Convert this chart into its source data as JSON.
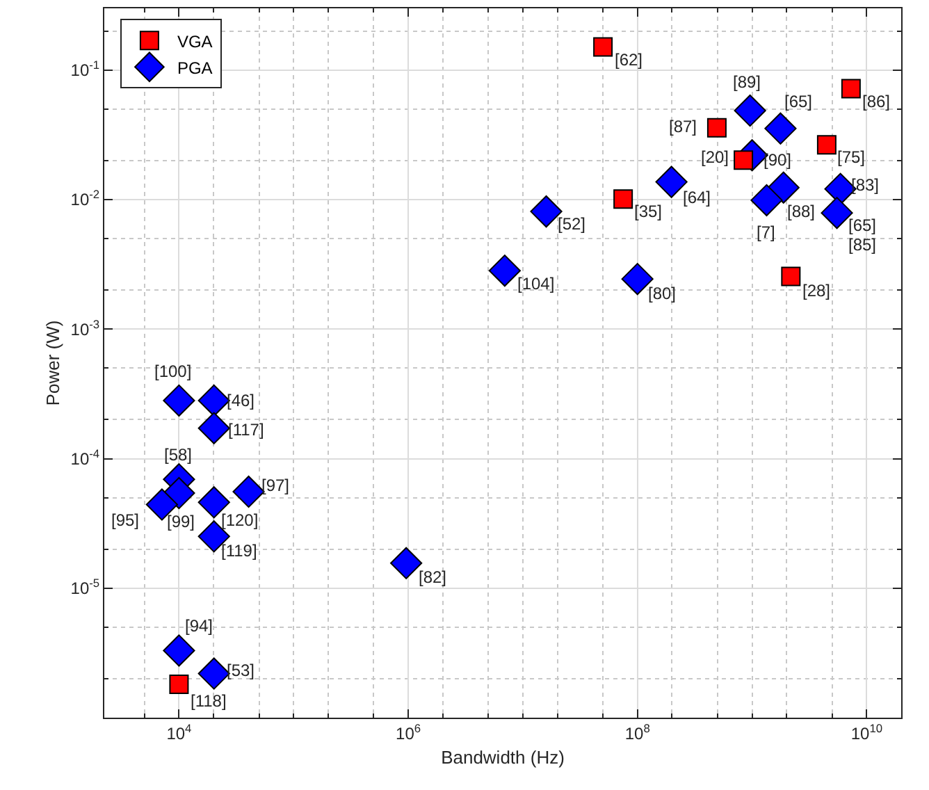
{
  "chart_data": {
    "type": "scatter",
    "xlabel": "Bandwidth (Hz)",
    "ylabel": "Power (W)",
    "log": "xy",
    "grid": true,
    "legend": "top left",
    "xlim": [
      2230,
      20000000000.0
    ],
    "ylim": [
      1e-06,
      0.3
    ],
    "xticks": [
      {
        "value": 10000,
        "label": "10$^{4}$"
      },
      {
        "value": 1000000,
        "label": "10$^{6}$"
      },
      {
        "value": 100000000,
        "label": "10$^{8}$"
      },
      {
        "value": 10000000000,
        "label": "10$^{10}$"
      }
    ],
    "yticks": [
      {
        "value": 1e-05,
        "label": "10$^{-5}$"
      },
      {
        "value": 0.0001,
        "label": "10$^{-4}$"
      },
      {
        "value": 0.001,
        "label": "10$^{-3}$"
      },
      {
        "value": 0.01,
        "label": "10$^{-2}$"
      },
      {
        "value": 0.1,
        "label": "10$^{-1}$"
      }
    ],
    "series": [
      {
        "name": "VGA",
        "color": "#ff0000",
        "marker": "square",
        "x": [
          50000000.0,
          7300000000.0,
          493000000.0,
          4480000000.0,
          840000000.0,
          75000000.0,
          2180000000.0,
          10000.0
        ],
        "values": [
          0.151,
          0.072,
          0.0359,
          0.0265,
          0.0202,
          0.0101,
          0.00255,
          1.81e-06
        ]
      },
      {
        "name": "PGA",
        "color": "#0000ff",
        "marker": "diamond",
        "x": [
          960000000.0,
          1770000000.0,
          1000000000.0,
          198000000.0,
          1880000000.0,
          5900000000.0,
          1340000000.0,
          16000000.0,
          5500000000.0,
          6950000.0,
          100000000.0,
          10000.0,
          20200.0,
          20200.0,
          10000.0,
          10000.0,
          7100.0,
          20200.0,
          40500.0,
          20200.0,
          960000.0,
          10000.0,
          20200.0
        ],
        "values": [
          0.0487,
          0.0354,
          0.022,
          0.0137,
          0.0124,
          0.0121,
          0.0099,
          0.0081,
          0.0079,
          0.00283,
          0.00244,
          0.000281,
          0.000281,
          0.000172,
          6.93e-05,
          5.42e-05,
          4.42e-05,
          4.6e-05,
          5.56e-05,
          2.51e-05,
          1.56e-05,
          3.3e-06,
          2.19e-06
        ]
      }
    ],
    "annotations": [
      {
        "text": "[62]",
        "x": 50000000.0,
        "y": 0.151
      },
      {
        "text": "[86]",
        "x": 7300000000.0,
        "y": 0.072
      },
      {
        "text": "[89]",
        "x": 960000000.0,
        "y": 0.0487
      },
      {
        "text": "[65]",
        "x": 1770000000.0,
        "y": 0.0354
      },
      {
        "text": "[87]",
        "x": 493000000.0,
        "y": 0.0359
      },
      {
        "text": "[75]",
        "x": 4480000000.0,
        "y": 0.0265
      },
      {
        "text": "[20]",
        "x": 840000000.0,
        "y": 0.0202
      },
      {
        "text": "[90]",
        "x": 1000000000.0,
        "y": 0.022
      },
      {
        "text": "[64]",
        "x": 198000000.0,
        "y": 0.0137
      },
      {
        "text": "[88]",
        "x": 1880000000.0,
        "y": 0.0124
      },
      {
        "text": "[83]",
        "x": 5900000000.0,
        "y": 0.0121
      },
      {
        "text": "[35]",
        "x": 75000000.0,
        "y": 0.0101
      },
      {
        "text": "[7]",
        "x": 1340000000.0,
        "y": 0.0099
      },
      {
        "text": "[52]",
        "x": 16000000.0,
        "y": 0.0081
      },
      {
        "text": "[65]",
        "x": 5500000000.0,
        "y": 0.0079
      },
      {
        "text": "[85]",
        "x": 5500000000.0,
        "y": 0.0079
      },
      {
        "text": "[104]",
        "x": 6950000.0,
        "y": 0.00283
      },
      {
        "text": "[80]",
        "x": 100000000.0,
        "y": 0.00244
      },
      {
        "text": "[28]",
        "x": 2180000000.0,
        "y": 0.00255
      },
      {
        "text": "[100]",
        "x": 10000.0,
        "y": 0.000281
      },
      {
        "text": "[46]",
        "x": 20200.0,
        "y": 0.000281
      },
      {
        "text": "[117]",
        "x": 20200.0,
        "y": 0.000172
      },
      {
        "text": "[58]",
        "x": 10000.0,
        "y": 6.93e-05
      },
      {
        "text": "[99]",
        "x": 10000.0,
        "y": 5.42e-05
      },
      {
        "text": "[95]",
        "x": 7100.0,
        "y": 4.42e-05
      },
      {
        "text": "[120]",
        "x": 20200.0,
        "y": 4.6e-05
      },
      {
        "text": "[97]",
        "x": 40500.0,
        "y": 5.56e-05
      },
      {
        "text": "[119]",
        "x": 20200.0,
        "y": 2.51e-05
      },
      {
        "text": "[82]",
        "x": 960000.0,
        "y": 1.56e-05
      },
      {
        "text": "[94]",
        "x": 10000.0,
        "y": 3.3e-06
      },
      {
        "text": "[53]",
        "x": 20200.0,
        "y": 2.19e-06
      },
      {
        "text": "[118]",
        "x": 10000.0,
        "y": 1.81e-06
      }
    ]
  }
}
